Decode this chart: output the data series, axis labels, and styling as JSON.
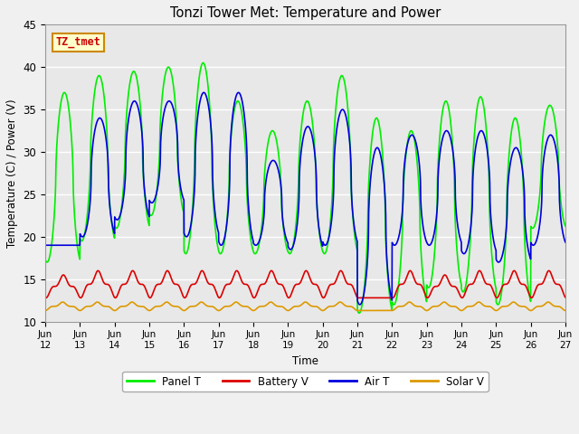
{
  "title": "Tonzi Tower Met: Temperature and Power",
  "xlabel": "Time",
  "ylabel": "Temperature (C) / Power (V)",
  "ylim": [
    10,
    45
  ],
  "xlim": [
    0,
    15
  ],
  "fig_bg_color": "#f0f0f0",
  "plot_bg_color": "#e8e8e8",
  "legend_labels": [
    "Panel T",
    "Battery V",
    "Air T",
    "Solar V"
  ],
  "legend_colors": [
    "#00ee00",
    "#dd0000",
    "#0000dd",
    "#dd9900"
  ],
  "annotation_text": "TZ_tmet",
  "annotation_bg": "#ffffcc",
  "annotation_border": "#cc8800",
  "annotation_text_color": "#cc0000",
  "x_tick_labels": [
    "Jun\n12",
    "Jun\n13",
    "Jun\n14",
    "Jun\n15",
    "Jun\n16",
    "Jun\n17",
    "Jun\n18",
    "Jun\n19",
    "Jun\n20",
    "Jun\n21",
    "Jun\n22",
    "Jun\n23",
    "Jun\n24",
    "Jun\n25",
    "Jun\n26",
    "Jun\n27"
  ],
  "grid_color": "#ffffff",
  "grid_linewidth": 1.0,
  "line_linewidth": 1.2,
  "panel_t_peaks": [
    37,
    39,
    39.5,
    40,
    40.5,
    36,
    32.5,
    36,
    39,
    34,
    32.5,
    36,
    36.5,
    34,
    35.5
  ],
  "panel_t_troughs": [
    17,
    19.5,
    21,
    22.5,
    18,
    18,
    18,
    18,
    18,
    11,
    12,
    14,
    13.5,
    12,
    21
  ],
  "air_t_peaks": [
    19,
    34,
    36,
    36,
    37,
    37,
    29,
    33,
    35,
    30.5,
    32,
    32.5,
    32.5,
    30.5,
    32
  ],
  "air_t_troughs": [
    19,
    20,
    22,
    24,
    20,
    19,
    19,
    18.5,
    19,
    12,
    19,
    19,
    18,
    17,
    19
  ],
  "battery_v_peaks": [
    15.5,
    16,
    16,
    16,
    16,
    16,
    16,
    16,
    16,
    12.5,
    16,
    15.5,
    16,
    16,
    16
  ],
  "battery_v_base": 12.8,
  "solar_v_peaks": [
    12.3,
    12.3,
    12.3,
    12.3,
    12.3,
    12.3,
    12.3,
    12.3,
    12.3,
    11.0,
    12.3,
    12.3,
    12.3,
    12.3,
    12.3
  ],
  "solar_v_base": 11.3
}
